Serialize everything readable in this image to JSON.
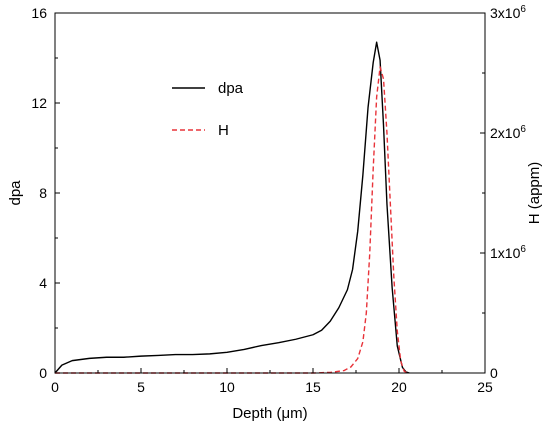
{
  "chart_data": {
    "type": "line",
    "title": "",
    "xlabel": "Depth (μm)",
    "ylabel_left": "dpa",
    "ylabel_right": "H (appm)",
    "xlim": [
      0,
      25
    ],
    "ylim_left": [
      0,
      16
    ],
    "ylim_right": [
      0,
      3000000
    ],
    "xticks": [
      0,
      5,
      10,
      15,
      20,
      25
    ],
    "yticks_left": [
      0,
      4,
      8,
      12,
      16
    ],
    "yticks_right": [
      {
        "value": 0,
        "mantissa": "0",
        "exponent": ""
      },
      {
        "value": 1000000,
        "mantissa": "1x10",
        "exponent": "6"
      },
      {
        "value": 2000000,
        "mantissa": "2x10",
        "exponent": "6"
      },
      {
        "value": 3000000,
        "mantissa": "3x10",
        "exponent": "6"
      }
    ],
    "grid": false,
    "legend_position": "top-left",
    "series": [
      {
        "name": "dpa",
        "axis": "left",
        "color": "#000000",
        "style": "solid",
        "x": [
          0,
          0.4,
          1,
          2,
          3,
          4,
          5,
          6,
          7,
          8,
          9,
          10,
          11,
          12,
          13,
          14,
          15,
          15.5,
          16,
          16.5,
          17,
          17.3,
          17.6,
          17.9,
          18.2,
          18.5,
          18.7,
          18.9,
          19.1,
          19.3,
          19.6,
          19.9,
          20.2,
          20.4,
          20.6
        ],
        "y": [
          0.0,
          0.35,
          0.55,
          0.65,
          0.7,
          0.7,
          0.75,
          0.78,
          0.82,
          0.82,
          0.85,
          0.92,
          1.05,
          1.22,
          1.35,
          1.5,
          1.7,
          1.9,
          2.3,
          2.9,
          3.7,
          4.6,
          6.3,
          8.8,
          11.8,
          13.8,
          14.7,
          13.9,
          11.0,
          7.5,
          3.8,
          1.2,
          0.25,
          0.05,
          0.0
        ]
      },
      {
        "name": "H",
        "axis": "right",
        "color": "#e8333a",
        "style": "dashed",
        "x": [
          0,
          10,
          15,
          16,
          16.8,
          17.2,
          17.6,
          17.9,
          18.1,
          18.3,
          18.5,
          18.7,
          18.9,
          19.1,
          19.3,
          19.5,
          19.7,
          19.9,
          20.1,
          20.3,
          20.5
        ],
        "y": [
          0,
          0,
          0,
          5000,
          20000,
          50000,
          120000,
          260000,
          500000,
          1000000,
          1700000,
          2300000,
          2550000,
          2450000,
          2000000,
          1400000,
          800000,
          350000,
          100000,
          15000,
          0
        ]
      }
    ]
  }
}
